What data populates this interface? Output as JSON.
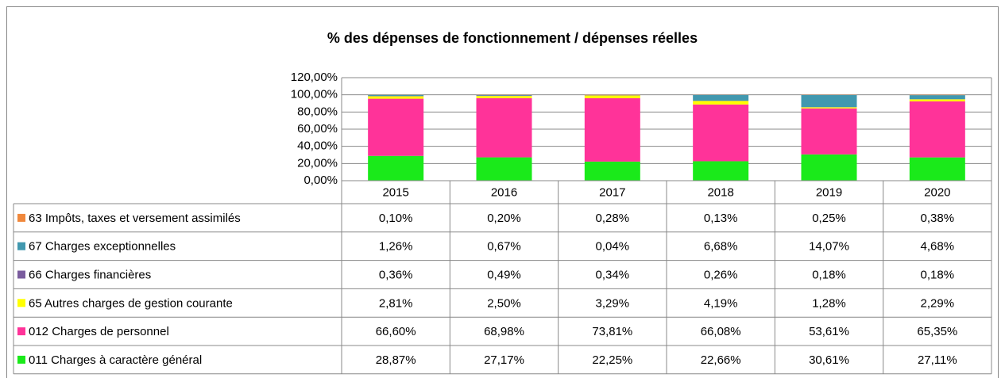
{
  "chart_data": {
    "type": "bar",
    "stacked": true,
    "title": "% des dépenses de fonctionnement / dépenses réelles",
    "categories": [
      "2015",
      "2016",
      "2017",
      "2018",
      "2019",
      "2020"
    ],
    "ylim": [
      0,
      120
    ],
    "yticks": [
      {
        "value": 0,
        "label": "0,00%"
      },
      {
        "value": 20,
        "label": "20,00%"
      },
      {
        "value": 40,
        "label": "40,00%"
      },
      {
        "value": 60,
        "label": "60,00%"
      },
      {
        "value": 80,
        "label": "80,00%"
      },
      {
        "value": 100,
        "label": "100,00%"
      },
      {
        "value": 120,
        "label": "120,00%"
      }
    ],
    "grid": true,
    "series": [
      {
        "name": "011 Charges à caractère général",
        "color": "#1aea1a",
        "values": [
          28.87,
          27.17,
          22.25,
          22.66,
          30.61,
          27.11
        ],
        "value_labels": [
          "28,87%",
          "27,17%",
          "22,25%",
          "22,66%",
          "30,61%",
          "27,11%"
        ]
      },
      {
        "name": "012 Charges de personnel",
        "color": "#ff3399",
        "values": [
          66.6,
          68.98,
          73.81,
          66.08,
          53.61,
          65.35
        ],
        "value_labels": [
          "66,60%",
          "68,98%",
          "73,81%",
          "66,08%",
          "53,61%",
          "65,35%"
        ]
      },
      {
        "name": "65 Autres charges de gestion courante",
        "color": "#ffff00",
        "values": [
          2.81,
          2.5,
          3.29,
          4.19,
          1.28,
          2.29
        ],
        "value_labels": [
          "2,81%",
          "2,50%",
          "3,29%",
          "4,19%",
          "1,28%",
          "2,29%"
        ]
      },
      {
        "name": "66  Charges financières",
        "color": "#7a5c9e",
        "values": [
          0.36,
          0.49,
          0.34,
          0.26,
          0.18,
          0.18
        ],
        "value_labels": [
          "0,36%",
          "0,49%",
          "0,34%",
          "0,26%",
          "0,18%",
          "0,18%"
        ]
      },
      {
        "name": "67 Charges exceptionnelles",
        "color": "#4198af",
        "values": [
          1.26,
          0.67,
          0.04,
          6.68,
          14.07,
          4.68
        ],
        "value_labels": [
          "1,26%",
          "0,67%",
          "0,04%",
          "6,68%",
          "14,07%",
          "4,68%"
        ]
      },
      {
        "name": "63 Impôts, taxes et versement assimilés",
        "color": "#f0883c",
        "values": [
          0.1,
          0.2,
          0.28,
          0.13,
          0.25,
          0.38
        ],
        "value_labels": [
          "0,10%",
          "0,20%",
          "0,28%",
          "0,13%",
          "0,25%",
          "0,38%"
        ]
      }
    ]
  }
}
